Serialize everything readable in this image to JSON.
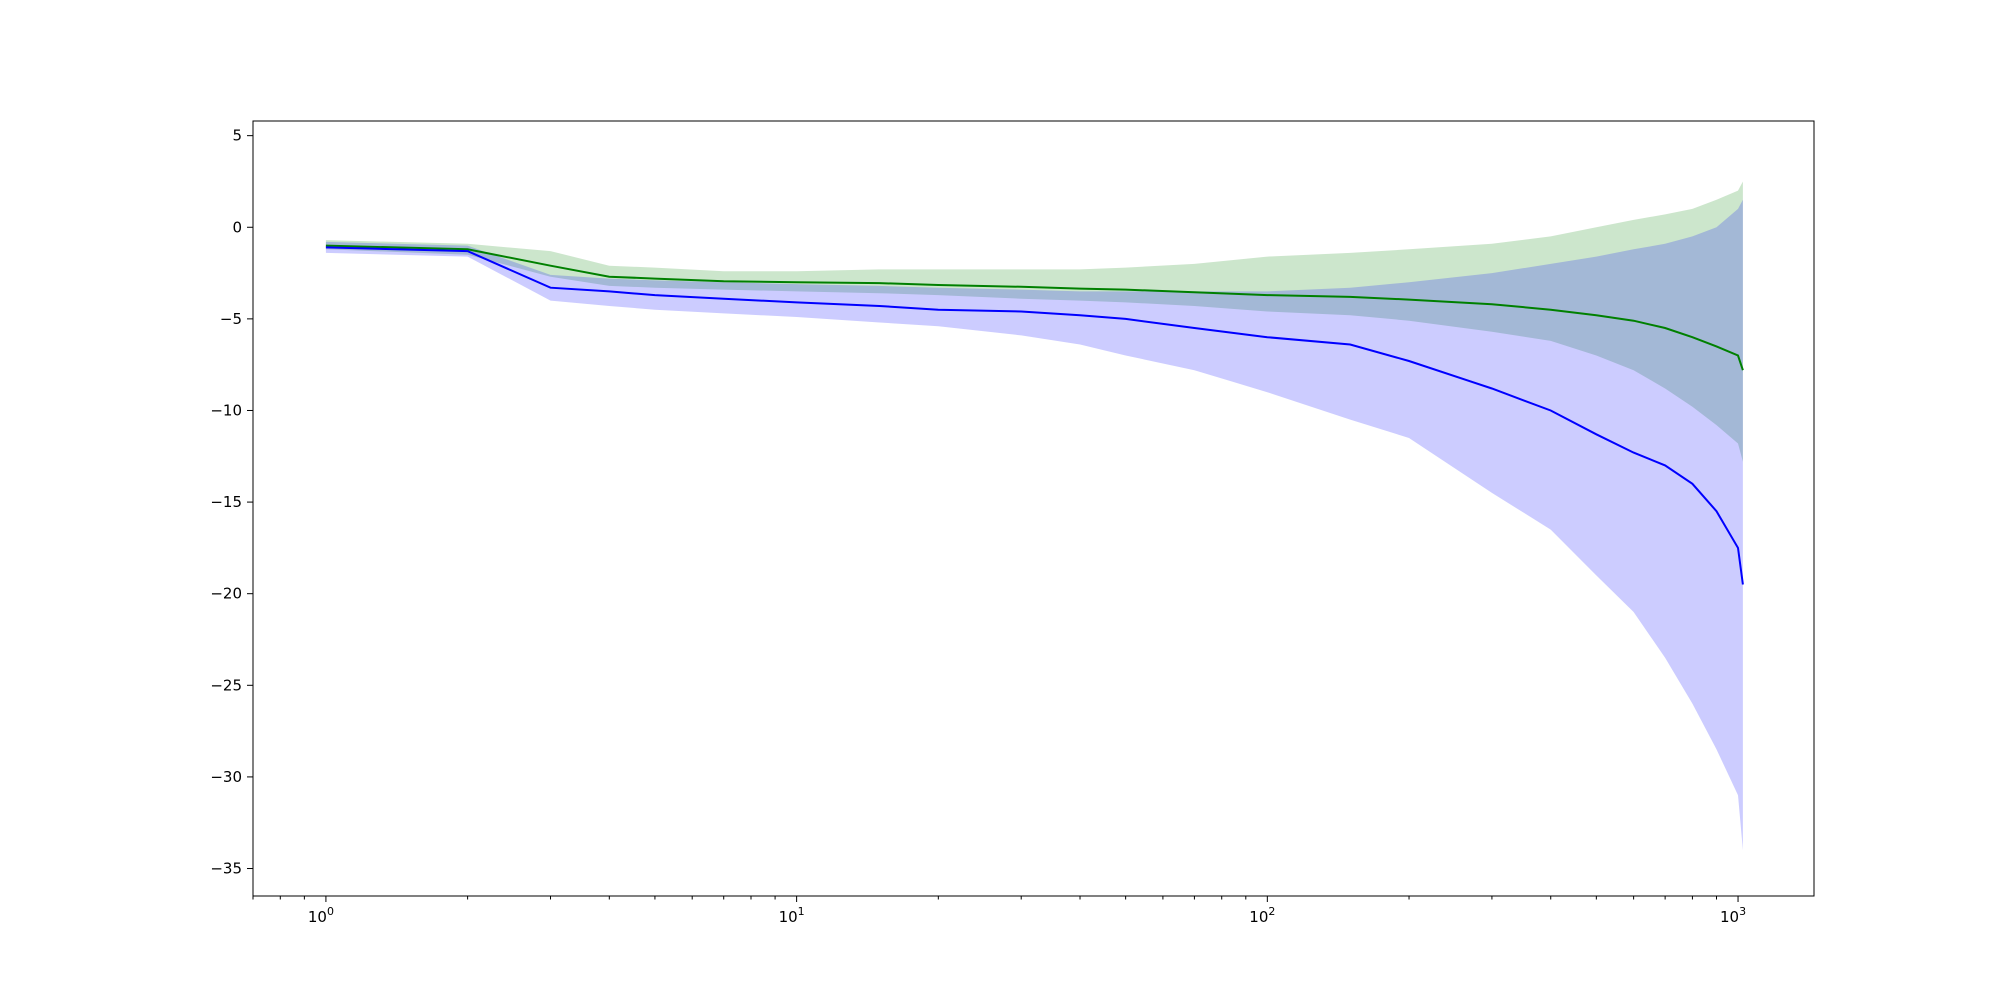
{
  "chart_data": {
    "type": "line",
    "title": "",
    "xlabel": "",
    "ylabel": "",
    "xscale": "log",
    "xlim": [
      0.7,
      1450
    ],
    "ylim": [
      -36.5,
      5.8
    ],
    "grid": false,
    "legend": "none",
    "x_ticks": [
      {
        "value": 1,
        "base": "10",
        "exp": "0"
      },
      {
        "value": 10,
        "base": "10",
        "exp": "1"
      },
      {
        "value": 100,
        "base": "10",
        "exp": "2"
      },
      {
        "value": 1000,
        "base": "10",
        "exp": "3"
      }
    ],
    "y_ticks": [
      {
        "value": 5,
        "label": "5"
      },
      {
        "value": 0,
        "label": "0"
      },
      {
        "value": -5,
        "label": "−5"
      },
      {
        "value": -10,
        "label": "−10"
      },
      {
        "value": -15,
        "label": "−15"
      },
      {
        "value": -20,
        "label": "−20"
      },
      {
        "value": -25,
        "label": "−25"
      },
      {
        "value": -30,
        "label": "−30"
      },
      {
        "value": -35,
        "label": "−35"
      }
    ],
    "x": [
      1,
      2,
      3,
      4,
      5,
      7,
      10,
      15,
      20,
      30,
      40,
      50,
      70,
      100,
      150,
      200,
      300,
      400,
      500,
      600,
      700,
      800,
      900,
      1000,
      1024
    ],
    "series": [
      {
        "color": "#008000",
        "band_color": "#008000",
        "band_opacity": 0.2,
        "values": [
          -1.0,
          -1.2,
          -2.1,
          -2.7,
          -2.8,
          -2.95,
          -3.0,
          -3.05,
          -3.15,
          -3.25,
          -3.35,
          -3.4,
          -3.55,
          -3.7,
          -3.8,
          -3.95,
          -4.2,
          -4.5,
          -4.8,
          -5.1,
          -5.5,
          -6.0,
          -6.5,
          -7.0,
          -7.8
        ],
        "lower": [
          -1.2,
          -1.5,
          -2.7,
          -3.2,
          -3.3,
          -3.4,
          -3.5,
          -3.6,
          -3.7,
          -3.9,
          -4.0,
          -4.1,
          -4.3,
          -4.6,
          -4.8,
          -5.1,
          -5.7,
          -6.2,
          -7.0,
          -7.8,
          -8.8,
          -9.8,
          -10.8,
          -11.8,
          -12.8
        ],
        "upper": [
          -0.7,
          -0.9,
          -1.3,
          -2.1,
          -2.2,
          -2.4,
          -2.4,
          -2.3,
          -2.3,
          -2.3,
          -2.3,
          -2.2,
          -2.0,
          -1.6,
          -1.4,
          -1.2,
          -0.9,
          -0.5,
          0.0,
          0.4,
          0.7,
          1.0,
          1.5,
          2.0,
          2.5
        ]
      },
      {
        "color": "#0000ff",
        "band_color": "#0000ff",
        "band_opacity": 0.2,
        "values": [
          -1.1,
          -1.3,
          -3.3,
          -3.5,
          -3.7,
          -3.9,
          -4.1,
          -4.3,
          -4.5,
          -4.6,
          -4.8,
          -5.0,
          -5.5,
          -6.0,
          -6.4,
          -7.3,
          -8.8,
          -10.0,
          -11.3,
          -12.3,
          -13.0,
          -14.0,
          -15.5,
          -17.5,
          -19.5
        ],
        "lower": [
          -1.4,
          -1.6,
          -4.0,
          -4.3,
          -4.5,
          -4.7,
          -4.9,
          -5.2,
          -5.4,
          -5.9,
          -6.4,
          -7.0,
          -7.8,
          -9.0,
          -10.5,
          -11.5,
          -14.5,
          -16.5,
          -19.0,
          -21.0,
          -23.5,
          -26.0,
          -28.5,
          -31.0,
          -34.0
        ],
        "upper": [
          -0.8,
          -1.0,
          -2.6,
          -2.8,
          -2.9,
          -3.0,
          -3.1,
          -3.2,
          -3.3,
          -3.4,
          -3.5,
          -3.5,
          -3.5,
          -3.5,
          -3.3,
          -3.0,
          -2.5,
          -2.0,
          -1.6,
          -1.2,
          -0.9,
          -0.5,
          0.0,
          1.0,
          1.5
        ]
      }
    ]
  }
}
